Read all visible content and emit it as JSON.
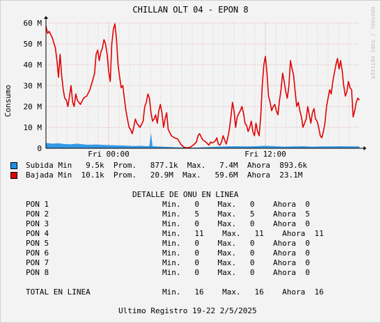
{
  "chart_data": {
    "type": "line",
    "title": "CHILLAN OLT 04 - EPON 8",
    "ylabel": "Consumo",
    "watermark": "RRDTOOL / TOBI OETIKER",
    "ylim": [
      0,
      60
    ],
    "y_unit": "M",
    "y_ticks": [
      "0",
      "10 M",
      "20 M",
      "30 M",
      "40 M",
      "50 M",
      "60 M"
    ],
    "x_ticks": [
      {
        "label": "Fri 00:00",
        "t": 0.2
      },
      {
        "label": "Fri 12:00",
        "t": 0.7
      }
    ],
    "grid": true,
    "series": [
      {
        "name": "Subida",
        "color": "#3399e6",
        "style": "area",
        "points": [
          [
            0,
            2.6
          ],
          [
            0.02,
            2.2
          ],
          [
            0.04,
            2.4
          ],
          [
            0.06,
            2.0
          ],
          [
            0.08,
            1.9
          ],
          [
            0.1,
            2.2
          ],
          [
            0.13,
            1.7
          ],
          [
            0.16,
            1.8
          ],
          [
            0.19,
            1.6
          ],
          [
            0.22,
            1.4
          ],
          [
            0.25,
            1.3
          ],
          [
            0.28,
            1.1
          ],
          [
            0.3,
            1.2
          ],
          [
            0.32,
            1.0
          ],
          [
            0.33,
            1.1
          ],
          [
            0.335,
            7.4
          ],
          [
            0.34,
            1.0
          ],
          [
            0.37,
            0.8
          ],
          [
            0.4,
            0.6
          ],
          [
            0.43,
            0.4
          ],
          [
            0.46,
            0.3
          ],
          [
            0.49,
            0.4
          ],
          [
            0.52,
            0.6
          ],
          [
            0.55,
            0.8
          ],
          [
            0.58,
            0.9
          ],
          [
            0.61,
            1.0
          ],
          [
            0.64,
            0.9
          ],
          [
            0.67,
            1.0
          ],
          [
            0.7,
            1.2
          ],
          [
            0.73,
            1.0
          ],
          [
            0.76,
            0.8
          ],
          [
            0.79,
            0.9
          ],
          [
            0.82,
            1.0
          ],
          [
            0.85,
            0.8
          ],
          [
            0.88,
            0.9
          ],
          [
            0.91,
            0.9
          ],
          [
            0.94,
            1.0
          ],
          [
            0.97,
            0.9
          ],
          [
            1.0,
            0.9
          ]
        ]
      },
      {
        "name": "Bajada",
        "color": "#e00000",
        "style": "line",
        "points": [
          [
            0,
            58.5
          ],
          [
            0.005,
            55
          ],
          [
            0.01,
            56
          ],
          [
            0.02,
            53
          ],
          [
            0.03,
            48
          ],
          [
            0.035,
            42
          ],
          [
            0.04,
            34
          ],
          [
            0.045,
            45
          ],
          [
            0.05,
            35
          ],
          [
            0.055,
            28
          ],
          [
            0.06,
            24
          ],
          [
            0.065,
            23
          ],
          [
            0.07,
            20
          ],
          [
            0.075,
            25
          ],
          [
            0.08,
            30
          ],
          [
            0.085,
            22
          ],
          [
            0.09,
            20
          ],
          [
            0.095,
            26
          ],
          [
            0.1,
            23
          ],
          [
            0.11,
            21
          ],
          [
            0.12,
            24
          ],
          [
            0.13,
            25
          ],
          [
            0.14,
            28
          ],
          [
            0.15,
            33
          ],
          [
            0.155,
            36
          ],
          [
            0.16,
            45
          ],
          [
            0.165,
            47
          ],
          [
            0.17,
            42
          ],
          [
            0.175,
            46
          ],
          [
            0.18,
            48
          ],
          [
            0.185,
            52
          ],
          [
            0.19,
            50
          ],
          [
            0.195,
            45
          ],
          [
            0.2,
            37
          ],
          [
            0.205,
            32
          ],
          [
            0.21,
            50
          ],
          [
            0.215,
            57
          ],
          [
            0.22,
            59.6
          ],
          [
            0.225,
            52
          ],
          [
            0.23,
            40
          ],
          [
            0.235,
            34
          ],
          [
            0.24,
            29
          ],
          [
            0.245,
            30
          ],
          [
            0.25,
            24
          ],
          [
            0.255,
            18
          ],
          [
            0.26,
            14
          ],
          [
            0.265,
            10
          ],
          [
            0.27,
            9
          ],
          [
            0.275,
            7
          ],
          [
            0.28,
            10
          ],
          [
            0.285,
            14
          ],
          [
            0.29,
            12
          ],
          [
            0.3,
            10
          ],
          [
            0.31,
            13
          ],
          [
            0.315,
            20
          ],
          [
            0.32,
            22
          ],
          [
            0.325,
            26
          ],
          [
            0.33,
            24
          ],
          [
            0.335,
            17
          ],
          [
            0.34,
            13
          ],
          [
            0.345,
            14
          ],
          [
            0.35,
            16
          ],
          [
            0.355,
            12
          ],
          [
            0.36,
            18
          ],
          [
            0.365,
            21
          ],
          [
            0.37,
            17
          ],
          [
            0.375,
            10
          ],
          [
            0.38,
            14
          ],
          [
            0.385,
            17
          ],
          [
            0.39,
            9
          ],
          [
            0.4,
            6
          ],
          [
            0.41,
            5
          ],
          [
            0.42,
            4.5
          ],
          [
            0.43,
            2
          ],
          [
            0.44,
            0.5
          ],
          [
            0.45,
            0.2
          ],
          [
            0.46,
            0.5
          ],
          [
            0.47,
            1.5
          ],
          [
            0.48,
            3
          ],
          [
            0.485,
            6
          ],
          [
            0.49,
            7
          ],
          [
            0.5,
            4
          ],
          [
            0.51,
            3
          ],
          [
            0.52,
            1.5
          ],
          [
            0.525,
            3
          ],
          [
            0.53,
            2.5
          ],
          [
            0.54,
            3.5
          ],
          [
            0.545,
            5
          ],
          [
            0.55,
            2
          ],
          [
            0.555,
            1.5
          ],
          [
            0.56,
            3
          ],
          [
            0.565,
            6
          ],
          [
            0.57,
            4
          ],
          [
            0.575,
            2
          ],
          [
            0.58,
            5
          ],
          [
            0.585,
            9
          ],
          [
            0.59,
            15
          ],
          [
            0.595,
            22
          ],
          [
            0.6,
            18
          ],
          [
            0.605,
            10
          ],
          [
            0.61,
            15
          ],
          [
            0.62,
            18
          ],
          [
            0.625,
            20
          ],
          [
            0.63,
            17
          ],
          [
            0.635,
            12
          ],
          [
            0.64,
            11
          ],
          [
            0.645,
            8
          ],
          [
            0.65,
            10
          ],
          [
            0.655,
            13
          ],
          [
            0.66,
            8
          ],
          [
            0.665,
            6
          ],
          [
            0.67,
            12
          ],
          [
            0.675,
            8
          ],
          [
            0.68,
            6
          ],
          [
            0.685,
            15
          ],
          [
            0.69,
            30
          ],
          [
            0.695,
            40
          ],
          [
            0.7,
            44
          ],
          [
            0.705,
            36
          ],
          [
            0.71,
            25
          ],
          [
            0.715,
            22
          ],
          [
            0.72,
            18
          ],
          [
            0.725,
            20
          ],
          [
            0.73,
            21
          ],
          [
            0.735,
            18
          ],
          [
            0.74,
            16
          ],
          [
            0.745,
            23
          ],
          [
            0.75,
            28
          ],
          [
            0.755,
            36
          ],
          [
            0.76,
            32
          ],
          [
            0.765,
            27
          ],
          [
            0.77,
            24
          ],
          [
            0.775,
            30
          ],
          [
            0.78,
            42
          ],
          [
            0.785,
            38
          ],
          [
            0.79,
            35
          ],
          [
            0.795,
            27
          ],
          [
            0.8,
            20
          ],
          [
            0.805,
            22
          ],
          [
            0.81,
            18
          ],
          [
            0.815,
            15
          ],
          [
            0.82,
            10
          ],
          [
            0.83,
            14
          ],
          [
            0.835,
            20
          ],
          [
            0.84,
            16
          ],
          [
            0.845,
            12
          ],
          [
            0.85,
            17
          ],
          [
            0.855,
            19
          ],
          [
            0.86,
            14
          ],
          [
            0.865,
            13
          ],
          [
            0.87,
            10
          ],
          [
            0.875,
            6
          ],
          [
            0.88,
            5
          ],
          [
            0.885,
            8
          ],
          [
            0.89,
            12
          ],
          [
            0.895,
            20
          ],
          [
            0.9,
            24
          ],
          [
            0.905,
            28
          ],
          [
            0.91,
            26
          ],
          [
            0.915,
            32
          ],
          [
            0.92,
            36
          ],
          [
            0.925,
            40
          ],
          [
            0.93,
            43
          ],
          [
            0.935,
            38
          ],
          [
            0.94,
            42
          ],
          [
            0.945,
            37
          ],
          [
            0.95,
            30
          ],
          [
            0.955,
            25
          ],
          [
            0.96,
            27
          ],
          [
            0.965,
            32
          ],
          [
            0.97,
            29
          ],
          [
            0.975,
            28
          ],
          [
            0.98,
            15
          ],
          [
            0.985,
            18
          ],
          [
            0.99,
            22
          ],
          [
            0.995,
            24
          ],
          [
            1.0,
            23.1
          ]
        ]
      }
    ]
  },
  "legend": {
    "rows": [
      {
        "name": "Subida",
        "color": "#1e8fe6",
        "text": "Subida Min   9.5k  Prom.   877.1k  Max.   7.4M  Ahora  893.6k"
      },
      {
        "name": "Bajada",
        "color": "#e00000",
        "text": "Bajada Min  10.1k  Prom.   20.9M  Max.   59.6M  Ahora  23.1M"
      }
    ]
  },
  "detail": {
    "heading": "DETALLE DE ONU EN LINEA",
    "rows": [
      {
        "name": "PON 1",
        "stats": "Min.   0    Max.   0    Ahora  0"
      },
      {
        "name": "PON 2",
        "stats": "Min.   5    Max.   5    Ahora  5"
      },
      {
        "name": "PON 3",
        "stats": "Min.   0    Max.   0    Ahora  0"
      },
      {
        "name": "PON 4",
        "stats": "Min.   11    Max.   11    Ahora  11"
      },
      {
        "name": "PON 5",
        "stats": "Min.   0    Max.   0    Ahora  0"
      },
      {
        "name": "PON 6",
        "stats": "Min.   0    Max.   0    Ahora  0"
      },
      {
        "name": "PON 7",
        "stats": "Min.   0    Max.   0    Ahora  0"
      },
      {
        "name": "PON 8",
        "stats": "Min.   0    Max.   0    Ahora  0"
      }
    ],
    "total": {
      "name": "TOTAL EN LINEA",
      "stats": "Min.   16    Max.   16    Ahora  16"
    }
  },
  "footer": "Ultimo Registro 19-22 2/5/2025"
}
